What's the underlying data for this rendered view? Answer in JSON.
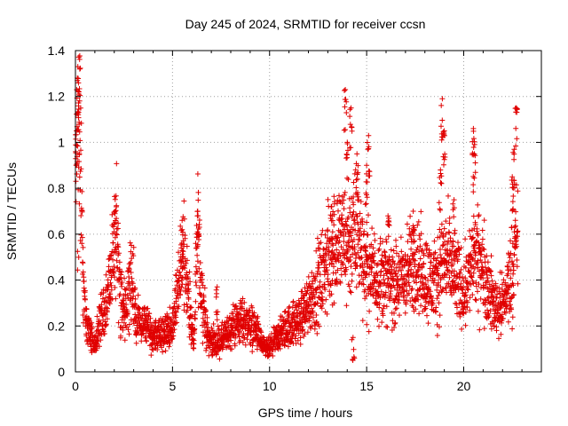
{
  "chart_data": {
    "type": "scatter",
    "title": "Day 245 of 2024, SRMTID for receiver ccsn",
    "xlabel": "GPS time / hours",
    "ylabel": "SRMTID / TECUs",
    "xlim": [
      0,
      24
    ],
    "ylim": [
      0,
      1.4
    ],
    "xticks": [
      0,
      5,
      10,
      15,
      20
    ],
    "xtick_labels": [
      "0",
      "5",
      "10",
      "15",
      "20"
    ],
    "yticks": [
      0,
      0.2,
      0.4,
      0.6,
      0.8,
      1.0,
      1.2,
      1.4
    ],
    "ytick_labels": [
      "0",
      "0.2",
      "0.4",
      "0.6",
      "0.8",
      "1",
      "1.2",
      "1.4"
    ],
    "grid": true,
    "marker": "+",
    "color": "#e00000",
    "data_extent_x": [
      0,
      22.8
    ],
    "trend_points": [
      {
        "x": 0.0,
        "y": 0.78
      },
      {
        "x": 0.1,
        "y": 0.9
      },
      {
        "x": 0.15,
        "y": 1.2
      },
      {
        "x": 0.25,
        "y": 1.1
      },
      {
        "x": 0.35,
        "y": 0.5
      },
      {
        "x": 0.5,
        "y": 0.25
      },
      {
        "x": 0.8,
        "y": 0.15
      },
      {
        "x": 1.0,
        "y": 0.12
      },
      {
        "x": 1.3,
        "y": 0.22
      },
      {
        "x": 1.6,
        "y": 0.3
      },
      {
        "x": 1.9,
        "y": 0.5
      },
      {
        "x": 2.1,
        "y": 0.62
      },
      {
        "x": 2.3,
        "y": 0.35
      },
      {
        "x": 2.6,
        "y": 0.28
      },
      {
        "x": 2.9,
        "y": 0.42
      },
      {
        "x": 3.2,
        "y": 0.22
      },
      {
        "x": 3.6,
        "y": 0.2
      },
      {
        "x": 4.0,
        "y": 0.15
      },
      {
        "x": 4.5,
        "y": 0.17
      },
      {
        "x": 5.0,
        "y": 0.18
      },
      {
        "x": 5.4,
        "y": 0.45
      },
      {
        "x": 5.6,
        "y": 0.55
      },
      {
        "x": 5.9,
        "y": 0.25
      },
      {
        "x": 6.1,
        "y": 0.12
      },
      {
        "x": 6.3,
        "y": 0.6
      },
      {
        "x": 6.5,
        "y": 0.35
      },
      {
        "x": 6.8,
        "y": 0.15
      },
      {
        "x": 7.3,
        "y": 0.12
      },
      {
        "x": 7.8,
        "y": 0.16
      },
      {
        "x": 8.3,
        "y": 0.22
      },
      {
        "x": 8.8,
        "y": 0.22
      },
      {
        "x": 9.3,
        "y": 0.18
      },
      {
        "x": 9.7,
        "y": 0.1
      },
      {
        "x": 10.0,
        "y": 0.1
      },
      {
        "x": 10.5,
        "y": 0.16
      },
      {
        "x": 11.0,
        "y": 0.2
      },
      {
        "x": 11.5,
        "y": 0.22
      },
      {
        "x": 12.0,
        "y": 0.3
      },
      {
        "x": 12.5,
        "y": 0.38
      },
      {
        "x": 13.0,
        "y": 0.48
      },
      {
        "x": 13.5,
        "y": 0.58
      },
      {
        "x": 14.0,
        "y": 0.55
      },
      {
        "x": 14.5,
        "y": 0.62
      },
      {
        "x": 15.0,
        "y": 0.45
      },
      {
        "x": 15.5,
        "y": 0.42
      },
      {
        "x": 16.0,
        "y": 0.4
      },
      {
        "x": 16.5,
        "y": 0.38
      },
      {
        "x": 17.0,
        "y": 0.42
      },
      {
        "x": 17.5,
        "y": 0.48
      },
      {
        "x": 18.0,
        "y": 0.42
      },
      {
        "x": 18.5,
        "y": 0.38
      },
      {
        "x": 19.0,
        "y": 0.5
      },
      {
        "x": 19.5,
        "y": 0.42
      },
      {
        "x": 20.0,
        "y": 0.35
      },
      {
        "x": 20.5,
        "y": 0.5
      },
      {
        "x": 21.0,
        "y": 0.45
      },
      {
        "x": 21.5,
        "y": 0.3
      },
      {
        "x": 22.0,
        "y": 0.28
      },
      {
        "x": 22.5,
        "y": 0.45
      },
      {
        "x": 22.8,
        "y": 0.6
      }
    ],
    "spikes": [
      {
        "x": 0.1,
        "y": 1.28
      },
      {
        "x": 0.18,
        "y": 1.22
      },
      {
        "x": 0.05,
        "y": 1.05
      },
      {
        "x": 0.2,
        "y": 0.95
      },
      {
        "x": 2.05,
        "y": 0.7
      },
      {
        "x": 6.3,
        "y": 0.7
      },
      {
        "x": 5.5,
        "y": 0.62
      },
      {
        "x": 13.9,
        "y": 1.23
      },
      {
        "x": 14.2,
        "y": 1.15
      },
      {
        "x": 14.0,
        "y": 1.0
      },
      {
        "x": 14.5,
        "y": 0.95
      },
      {
        "x": 15.1,
        "y": 1.03
      },
      {
        "x": 15.0,
        "y": 0.9
      },
      {
        "x": 18.9,
        "y": 1.19
      },
      {
        "x": 19.0,
        "y": 1.05
      },
      {
        "x": 18.8,
        "y": 0.88
      },
      {
        "x": 20.5,
        "y": 1.06
      },
      {
        "x": 20.55,
        "y": 0.95
      },
      {
        "x": 22.7,
        "y": 1.15
      },
      {
        "x": 22.6,
        "y": 0.97
      },
      {
        "x": 22.5,
        "y": 0.85
      },
      {
        "x": 13.2,
        "y": 0.72
      },
      {
        "x": 16.1,
        "y": 0.68
      },
      {
        "x": 17.4,
        "y": 0.7
      },
      {
        "x": 19.5,
        "y": 0.75
      },
      {
        "x": 7.3,
        "y": 0.37
      },
      {
        "x": 14.3,
        "y": 0.15
      }
    ]
  }
}
